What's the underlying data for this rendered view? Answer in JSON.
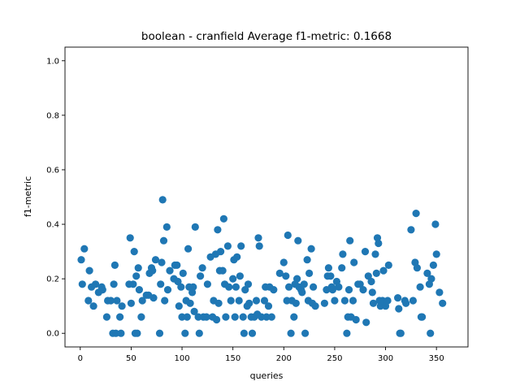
{
  "chart_data": {
    "type": "scatter",
    "title": "boolean - cranfield  Average f1-metric: 0.1668",
    "xlabel": "queries",
    "ylabel": "f1-metric",
    "xlim": [
      -15,
      381
    ],
    "ylim": [
      -0.05,
      1.05
    ],
    "xticks": [
      0,
      50,
      100,
      150,
      200,
      250,
      300,
      350
    ],
    "yticks": [
      0.0,
      0.2,
      0.4,
      0.6,
      0.8,
      1.0
    ],
    "xtick_labels": [
      "0",
      "50",
      "100",
      "150",
      "200",
      "250",
      "300",
      "350"
    ],
    "ytick_labels": [
      "0.0",
      "0.2",
      "0.4",
      "0.6",
      "0.8",
      "1.0"
    ],
    "grid": false,
    "marker_color": "#1f77b4",
    "points": [
      [
        1,
        0.27
      ],
      [
        2,
        0.18
      ],
      [
        4,
        0.31
      ],
      [
        8,
        0.12
      ],
      [
        9,
        0.23
      ],
      [
        11,
        0.17
      ],
      [
        13,
        0.1
      ],
      [
        15,
        0.18
      ],
      [
        18,
        0.15
      ],
      [
        21,
        0.17
      ],
      [
        22,
        0.16
      ],
      [
        26,
        0.06
      ],
      [
        27,
        0.12
      ],
      [
        30,
        0.12
      ],
      [
        32,
        0.0
      ],
      [
        33,
        0.18
      ],
      [
        34,
        0.25
      ],
      [
        35,
        0.0
      ],
      [
        36,
        0.12
      ],
      [
        39,
        0.06
      ],
      [
        40,
        0.0
      ],
      [
        41,
        0.1
      ],
      [
        48,
        0.18
      ],
      [
        49,
        0.35
      ],
      [
        50,
        0.11
      ],
      [
        52,
        0.18
      ],
      [
        53,
        0.3
      ],
      [
        54,
        0.0
      ],
      [
        55,
        0.21
      ],
      [
        56,
        0.0
      ],
      [
        57,
        0.24
      ],
      [
        58,
        0.16
      ],
      [
        60,
        0.06
      ],
      [
        61,
        0.12
      ],
      [
        65,
        0.14
      ],
      [
        67,
        0.14
      ],
      [
        68,
        0.22
      ],
      [
        70,
        0.24
      ],
      [
        71,
        0.23
      ],
      [
        72,
        0.13
      ],
      [
        74,
        0.27
      ],
      [
        78,
        0.0
      ],
      [
        79,
        0.18
      ],
      [
        80,
        0.26
      ],
      [
        81,
        0.49
      ],
      [
        82,
        0.34
      ],
      [
        83,
        0.12
      ],
      [
        85,
        0.39
      ],
      [
        86,
        0.16
      ],
      [
        88,
        0.23
      ],
      [
        92,
        0.2
      ],
      [
        93,
        0.25
      ],
      [
        95,
        0.25
      ],
      [
        96,
        0.19
      ],
      [
        97,
        0.1
      ],
      [
        99,
        0.17
      ],
      [
        100,
        0.06
      ],
      [
        101,
        0.22
      ],
      [
        103,
        0.0
      ],
      [
        104,
        0.12
      ],
      [
        105,
        0.06
      ],
      [
        106,
        0.31
      ],
      [
        107,
        0.17
      ],
      [
        108,
        0.11
      ],
      [
        110,
        0.15
      ],
      [
        111,
        0.17
      ],
      [
        112,
        0.08
      ],
      [
        113,
        0.39
      ],
      [
        116,
        0.06
      ],
      [
        117,
        0.0
      ],
      [
        118,
        0.21
      ],
      [
        120,
        0.24
      ],
      [
        121,
        0.06
      ],
      [
        124,
        0.06
      ],
      [
        125,
        0.18
      ],
      [
        128,
        0.28
      ],
      [
        130,
        0.06
      ],
      [
        131,
        0.12
      ],
      [
        133,
        0.29
      ],
      [
        134,
        0.05
      ],
      [
        135,
        0.38
      ],
      [
        136,
        0.11
      ],
      [
        137,
        0.23
      ],
      [
        138,
        0.3
      ],
      [
        140,
        0.23
      ],
      [
        141,
        0.42
      ],
      [
        142,
        0.18
      ],
      [
        143,
        0.06
      ],
      [
        145,
        0.32
      ],
      [
        146,
        0.17
      ],
      [
        148,
        0.12
      ],
      [
        150,
        0.2
      ],
      [
        151,
        0.27
      ],
      [
        152,
        0.06
      ],
      [
        153,
        0.17
      ],
      [
        154,
        0.28
      ],
      [
        156,
        0.12
      ],
      [
        157,
        0.21
      ],
      [
        158,
        0.32
      ],
      [
        160,
        0.06
      ],
      [
        161,
        0.0
      ],
      [
        162,
        0.16
      ],
      [
        164,
        0.1
      ],
      [
        165,
        0.18
      ],
      [
        166,
        0.11
      ],
      [
        168,
        0.06
      ],
      [
        169,
        0.0
      ],
      [
        171,
        0.06
      ],
      [
        173,
        0.12
      ],
      [
        174,
        0.07
      ],
      [
        175,
        0.35
      ],
      [
        176,
        0.32
      ],
      [
        178,
        0.06
      ],
      [
        181,
        0.12
      ],
      [
        182,
        0.17
      ],
      [
        183,
        0.06
      ],
      [
        185,
        0.1
      ],
      [
        186,
        0.17
      ],
      [
        188,
        0.06
      ],
      [
        190,
        0.16
      ],
      [
        196,
        0.22
      ],
      [
        200,
        0.26
      ],
      [
        202,
        0.21
      ],
      [
        203,
        0.12
      ],
      [
        204,
        0.36
      ],
      [
        205,
        0.17
      ],
      [
        207,
        0.0
      ],
      [
        208,
        0.12
      ],
      [
        210,
        0.06
      ],
      [
        211,
        0.18
      ],
      [
        212,
        0.11
      ],
      [
        213,
        0.2
      ],
      [
        214,
        0.34
      ],
      [
        215,
        0.17
      ],
      [
        217,
        0.16
      ],
      [
        218,
        0.15
      ],
      [
        220,
        0.18
      ],
      [
        221,
        0.0
      ],
      [
        223,
        0.27
      ],
      [
        224,
        0.12
      ],
      [
        225,
        0.22
      ],
      [
        227,
        0.31
      ],
      [
        228,
        0.11
      ],
      [
        229,
        0.17
      ],
      [
        231,
        0.1
      ],
      [
        240,
        0.11
      ],
      [
        242,
        0.16
      ],
      [
        243,
        0.21
      ],
      [
        244,
        0.24
      ],
      [
        246,
        0.21
      ],
      [
        247,
        0.17
      ],
      [
        248,
        0.16
      ],
      [
        250,
        0.12
      ],
      [
        252,
        0.19
      ],
      [
        254,
        0.17
      ],
      [
        257,
        0.24
      ],
      [
        258,
        0.29
      ],
      [
        260,
        0.12
      ],
      [
        262,
        0.0
      ],
      [
        263,
        0.06
      ],
      [
        264,
        0.16
      ],
      [
        265,
        0.34
      ],
      [
        266,
        0.06
      ],
      [
        268,
        0.12
      ],
      [
        269,
        0.26
      ],
      [
        271,
        0.05
      ],
      [
        273,
        0.18
      ],
      [
        275,
        0.18
      ],
      [
        278,
        0.16
      ],
      [
        280,
        0.3
      ],
      [
        281,
        0.04
      ],
      [
        283,
        0.21
      ],
      [
        286,
        0.19
      ],
      [
        287,
        0.15
      ],
      [
        288,
        0.11
      ],
      [
        290,
        0.29
      ],
      [
        291,
        0.22
      ],
      [
        292,
        0.35
      ],
      [
        293,
        0.33
      ],
      [
        294,
        0.12
      ],
      [
        295,
        0.1
      ],
      [
        297,
        0.12
      ],
      [
        298,
        0.23
      ],
      [
        300,
        0.1
      ],
      [
        302,
        0.12
      ],
      [
        303,
        0.25
      ],
      [
        312,
        0.13
      ],
      [
        313,
        0.09
      ],
      [
        314,
        0.0
      ],
      [
        315,
        0.0
      ],
      [
        319,
        0.12
      ],
      [
        320,
        0.11
      ],
      [
        325,
        0.38
      ],
      [
        327,
        0.12
      ],
      [
        329,
        0.26
      ],
      [
        330,
        0.44
      ],
      [
        331,
        0.24
      ],
      [
        334,
        0.17
      ],
      [
        335,
        0.06
      ],
      [
        336,
        0.06
      ],
      [
        341,
        0.22
      ],
      [
        343,
        0.18
      ],
      [
        344,
        0.0
      ],
      [
        345,
        0.2
      ],
      [
        347,
        0.25
      ],
      [
        349,
        0.4
      ],
      [
        350,
        0.29
      ],
      [
        353,
        0.15
      ],
      [
        356,
        0.11
      ]
    ]
  }
}
